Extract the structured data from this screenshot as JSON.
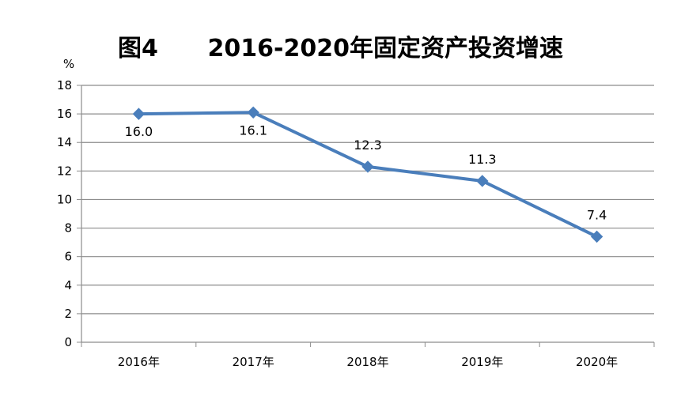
{
  "chart_data": {
    "type": "line",
    "title": "图4      2016-2020年固定资产投资增速",
    "ylabel": "%",
    "xlabel": "",
    "categories": [
      "2016年",
      "2017年",
      "2018年",
      "2019年",
      "2020年"
    ],
    "series": [
      {
        "values": [
          16.0,
          16.1,
          12.3,
          11.3,
          7.4
        ]
      }
    ],
    "data_labels": [
      "16.0",
      "16.1",
      "12.3",
      "11.3",
      "7.4"
    ],
    "ylim": [
      0,
      18
    ],
    "yticks": [
      0,
      2,
      4,
      6,
      8,
      10,
      12,
      14,
      16,
      18
    ],
    "grid": true,
    "legend": "none",
    "colors": {
      "line": "#4a7ebb",
      "grid": "#8c8c8c",
      "axis": "#8c8c8c"
    }
  }
}
